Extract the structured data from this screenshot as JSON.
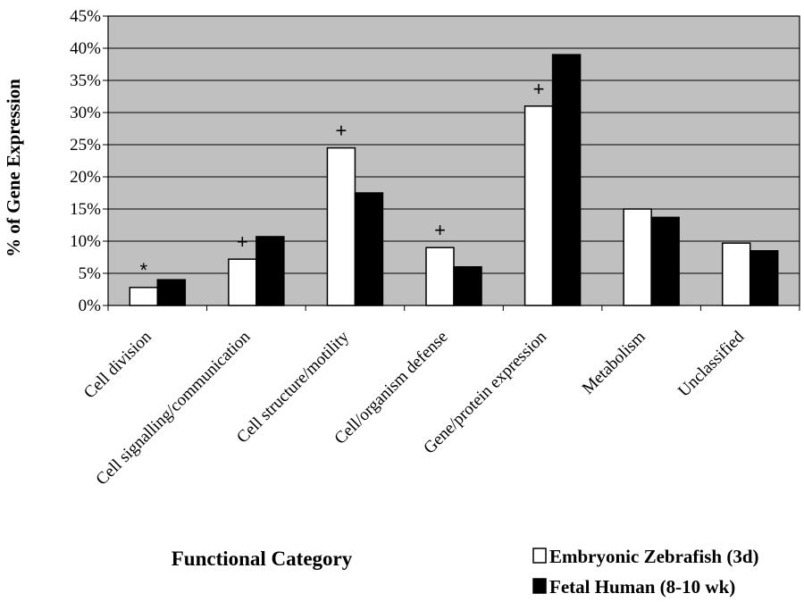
{
  "chart_data": {
    "type": "bar",
    "title": "",
    "ylabel": "% of Gene Expression",
    "xlabel": "Functional Category",
    "ylim": [
      0,
      45
    ],
    "yticks": [
      "0%",
      "5%",
      "10%",
      "15%",
      "20%",
      "25%",
      "30%",
      "35%",
      "40%",
      "45%"
    ],
    "grid": true,
    "legend_position": "bottom-right",
    "categories": [
      "Cell division",
      "Cell signalling/communication",
      "Cell structure/motility",
      "Cell/organism defense",
      "Gene/protein expression",
      "Metabolism",
      "Unclassified"
    ],
    "series": [
      {
        "name": "Embryonic Zebrafish (3d)",
        "values": [
          2.8,
          7.2,
          24.5,
          9.0,
          31.0,
          15.0,
          9.7
        ],
        "color": "#ffffff"
      },
      {
        "name": "Fetal Human (8-10 wk)",
        "values": [
          4.0,
          10.7,
          17.5,
          6.0,
          39.0,
          13.7,
          8.5
        ],
        "color": "#000000"
      }
    ],
    "annotations": [
      "*",
      "+",
      "+",
      "+",
      "+",
      "",
      ""
    ]
  },
  "colors": {
    "plot_background": "#c0c0c0",
    "gridline": "#000000"
  }
}
